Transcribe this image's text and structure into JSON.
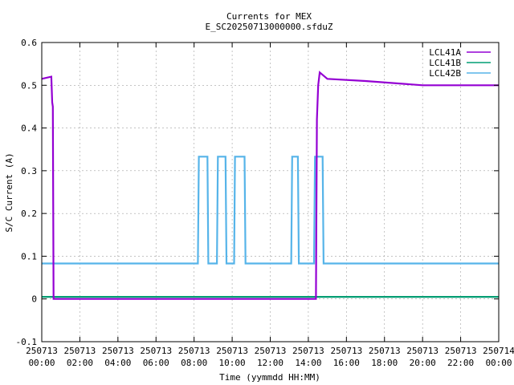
{
  "chart_data": {
    "type": "line",
    "title": "Currents for MEX",
    "subtitle": "E_SC20250713000000.sfduZ",
    "xlabel": "Time (yymmdd HH:MM)",
    "ylabel": "S/C Current (A)",
    "xlim": [
      0,
      24
    ],
    "ylim": [
      -0.1,
      0.6
    ],
    "grid": true,
    "legend_position": "top-right",
    "x_ticks": [
      {
        "value": 0,
        "date": "250713",
        "time": "00:00"
      },
      {
        "value": 2,
        "date": "250713",
        "time": "02:00"
      },
      {
        "value": 4,
        "date": "250713",
        "time": "04:00"
      },
      {
        "value": 6,
        "date": "250713",
        "time": "06:00"
      },
      {
        "value": 8,
        "date": "250713",
        "time": "08:00"
      },
      {
        "value": 10,
        "date": "250713",
        "time": "10:00"
      },
      {
        "value": 12,
        "date": "250713",
        "time": "12:00"
      },
      {
        "value": 14,
        "date": "250713",
        "time": "14:00"
      },
      {
        "value": 16,
        "date": "250713",
        "time": "16:00"
      },
      {
        "value": 18,
        "date": "250713",
        "time": "18:00"
      },
      {
        "value": 20,
        "date": "250713",
        "time": "20:00"
      },
      {
        "value": 22,
        "date": "250713",
        "time": "22:00"
      },
      {
        "value": 24,
        "date": "250714",
        "time": "00:00"
      }
    ],
    "y_ticks": [
      "-0.1",
      "0",
      "0.1",
      "0.2",
      "0.3",
      "0.4",
      "0.5",
      "0.6"
    ],
    "series": [
      {
        "name": "LCL41A",
        "color": "#9400d3",
        "points": [
          [
            0,
            0.515
          ],
          [
            0.5,
            0.52
          ],
          [
            0.55,
            0.46
          ],
          [
            0.58,
            0.45
          ],
          [
            0.62,
            0.0
          ],
          [
            14.4,
            0.0
          ],
          [
            14.45,
            0.42
          ],
          [
            14.52,
            0.5
          ],
          [
            14.6,
            0.53
          ],
          [
            15.0,
            0.515
          ],
          [
            17.0,
            0.51
          ],
          [
            20.0,
            0.5
          ],
          [
            24.0,
            0.5
          ]
        ]
      },
      {
        "name": "LCL41B",
        "color": "#009e73",
        "points": [
          [
            0,
            0.005
          ],
          [
            24,
            0.005
          ]
        ]
      },
      {
        "name": "LCL42B",
        "color": "#56b4e9",
        "points": [
          [
            0,
            0.083
          ],
          [
            8.2,
            0.083
          ],
          [
            8.25,
            0.333
          ],
          [
            8.7,
            0.333
          ],
          [
            8.75,
            0.083
          ],
          [
            9.2,
            0.083
          ],
          [
            9.25,
            0.333
          ],
          [
            9.65,
            0.333
          ],
          [
            9.7,
            0.083
          ],
          [
            10.1,
            0.083
          ],
          [
            10.15,
            0.333
          ],
          [
            10.65,
            0.333
          ],
          [
            10.7,
            0.083
          ],
          [
            13.1,
            0.083
          ],
          [
            13.15,
            0.333
          ],
          [
            13.45,
            0.333
          ],
          [
            13.5,
            0.083
          ],
          [
            14.3,
            0.083
          ],
          [
            14.35,
            0.333
          ],
          [
            14.75,
            0.333
          ],
          [
            14.8,
            0.083
          ],
          [
            24,
            0.083
          ]
        ]
      }
    ]
  }
}
